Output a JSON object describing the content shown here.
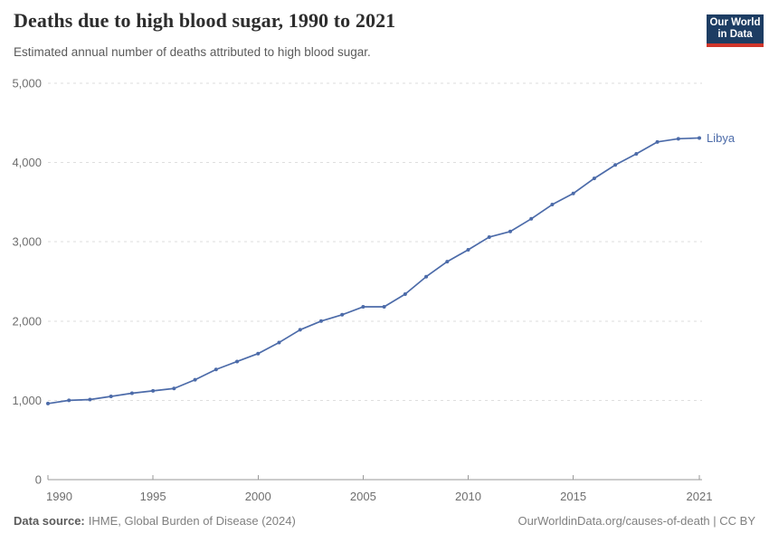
{
  "chart_data": {
    "type": "line",
    "title": "Deaths due to high blood sugar, 1990 to 2021",
    "subtitle": "Estimated annual number of deaths attributed to high blood sugar.",
    "entity_label": "Libya",
    "x": [
      1990,
      1991,
      1992,
      1993,
      1994,
      1995,
      1996,
      1997,
      1998,
      1999,
      2000,
      2001,
      2002,
      2003,
      2004,
      2005,
      2006,
      2007,
      2008,
      2009,
      2010,
      2011,
      2012,
      2013,
      2014,
      2015,
      2016,
      2017,
      2018,
      2019,
      2020,
      2021
    ],
    "series": [
      {
        "name": "Libya",
        "color": "#4c6ba9",
        "values": [
          960,
          1000,
          1010,
          1050,
          1090,
          1120,
          1150,
          1260,
          1390,
          1490,
          1590,
          1730,
          1890,
          2000,
          2080,
          2180,
          2180,
          2340,
          2560,
          2750,
          2900,
          3060,
          3130,
          3290,
          3470,
          3610,
          3800,
          3970,
          4110,
          4260,
          4300,
          4310
        ]
      }
    ],
    "x_ticks": [
      1990,
      1995,
      2000,
      2005,
      2010,
      2015,
      2021
    ],
    "y_ticks": [
      0,
      1000,
      2000,
      3000,
      4000,
      5000
    ],
    "y_tick_labels": [
      "0",
      "1,000",
      "2,000",
      "3,000",
      "4,000",
      "5,000"
    ],
    "xlim": [
      1990,
      2021
    ],
    "ylim": [
      0,
      5000
    ],
    "grid": "horizontal-dashed",
    "legend_position": "inline-right-of-last-point"
  },
  "logo": {
    "line1": "Our World",
    "line2": "in Data",
    "bg_color": "#1d3d63",
    "stripe_color": "#d0362b"
  },
  "footer": {
    "source_label": "Data source:",
    "source_text": "IHME, Global Burden of Disease (2024)",
    "license_text": "OurWorldinData.org/causes-of-death | CC BY"
  },
  "colors": {
    "line": "#4c6ba9",
    "grid": "#dedede",
    "axis": "#9a9a9a",
    "tick_label": "#6e6e6e",
    "title": "#2d2d2d",
    "subtitle": "#5a5a5a",
    "footer": "#808080"
  }
}
